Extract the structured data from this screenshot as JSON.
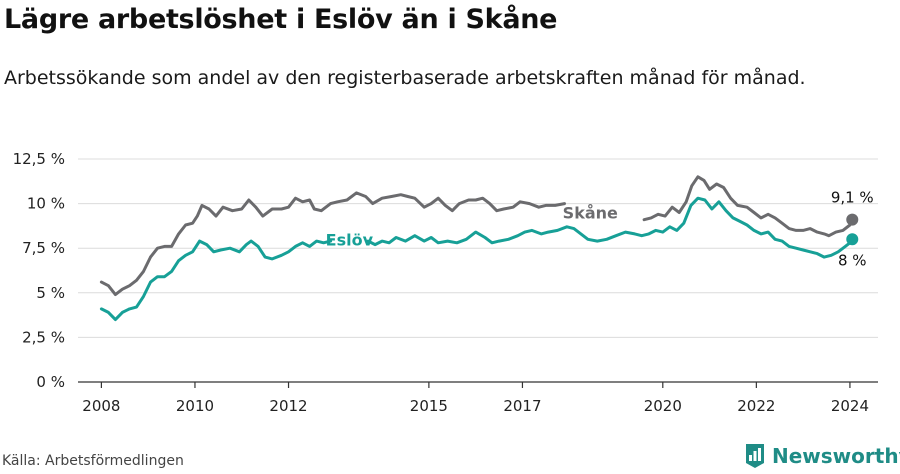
{
  "header": {
    "title": "Lägre arbetslöshet i Eslöv än i Skåne",
    "subtitle": "Arbetssökande som andel av den registerbaserade arbetskraften månad för månad."
  },
  "footer": {
    "source": "Källa: Arbetsförmedlingen",
    "brand": "Newsworthy",
    "brand_color": "#1f8c86"
  },
  "chart_data": {
    "type": "line",
    "title": "Lägre arbetslöshet i Eslöv än i Skåne",
    "xlabel": "",
    "ylabel": "",
    "xlim": [
      2007.5,
      2024.6
    ],
    "ylim": [
      0,
      12.5
    ],
    "grid": true,
    "y_ticks": [
      {
        "value": 0,
        "label": "0 %"
      },
      {
        "value": 2.5,
        "label": "2,5 %"
      },
      {
        "value": 5,
        "label": "5 %"
      },
      {
        "value": 7.5,
        "label": "7,5 %"
      },
      {
        "value": 10,
        "label": "10 %"
      },
      {
        "value": 12.5,
        "label": "12,5 %"
      }
    ],
    "x_ticks": [
      {
        "value": 2008,
        "label": "2008"
      },
      {
        "value": 2010,
        "label": "2010"
      },
      {
        "value": 2012,
        "label": "2012"
      },
      {
        "value": 2015,
        "label": "2015"
      },
      {
        "value": 2017,
        "label": "2017"
      },
      {
        "value": 2020,
        "label": "2020"
      },
      {
        "value": 2022,
        "label": "2022"
      },
      {
        "value": 2024,
        "label": "2024"
      }
    ],
    "series": [
      {
        "name": "Skåne",
        "color": "#6b6b6e",
        "end_label": "9,1 %",
        "points": [
          [
            2008.0,
            5.6
          ],
          [
            2008.15,
            5.4
          ],
          [
            2008.3,
            4.9
          ],
          [
            2008.45,
            5.2
          ],
          [
            2008.6,
            5.4
          ],
          [
            2008.75,
            5.7
          ],
          [
            2008.9,
            6.2
          ],
          [
            2009.05,
            7.0
          ],
          [
            2009.2,
            7.5
          ],
          [
            2009.35,
            7.6
          ],
          [
            2009.5,
            7.6
          ],
          [
            2009.65,
            8.3
          ],
          [
            2009.8,
            8.8
          ],
          [
            2009.95,
            8.9
          ],
          [
            2010.05,
            9.3
          ],
          [
            2010.15,
            9.9
          ],
          [
            2010.3,
            9.7
          ],
          [
            2010.45,
            9.3
          ],
          [
            2010.6,
            9.8
          ],
          [
            2010.8,
            9.6
          ],
          [
            2011.0,
            9.7
          ],
          [
            2011.15,
            10.2
          ],
          [
            2011.3,
            9.8
          ],
          [
            2011.45,
            9.3
          ],
          [
            2011.65,
            9.7
          ],
          [
            2011.85,
            9.7
          ],
          [
            2012.0,
            9.8
          ],
          [
            2012.15,
            10.3
          ],
          [
            2012.3,
            10.1
          ],
          [
            2012.45,
            10.2
          ],
          [
            2012.55,
            9.7
          ],
          [
            2012.7,
            9.6
          ],
          [
            2012.9,
            10.0
          ],
          [
            2013.05,
            10.1
          ],
          [
            2013.25,
            10.2
          ],
          [
            2013.45,
            10.6
          ],
          [
            2013.65,
            10.4
          ],
          [
            2013.8,
            10.0
          ],
          [
            2014.0,
            10.3
          ],
          [
            2014.2,
            10.4
          ],
          [
            2014.4,
            10.5
          ],
          [
            2014.55,
            10.4
          ],
          [
            2014.7,
            10.3
          ],
          [
            2014.9,
            9.8
          ],
          [
            2015.05,
            10.0
          ],
          [
            2015.2,
            10.3
          ],
          [
            2015.35,
            9.9
          ],
          [
            2015.5,
            9.6
          ],
          [
            2015.65,
            10.0
          ],
          [
            2015.85,
            10.2
          ],
          [
            2016.0,
            10.2
          ],
          [
            2016.15,
            10.3
          ],
          [
            2016.3,
            10.0
          ],
          [
            2016.45,
            9.6
          ],
          [
            2016.6,
            9.7
          ],
          [
            2016.8,
            9.8
          ],
          [
            2016.95,
            10.1
          ],
          [
            2017.15,
            10.0
          ],
          [
            2017.35,
            9.8
          ],
          [
            2017.5,
            9.9
          ],
          [
            2017.7,
            9.9
          ],
          [
            2017.9,
            10.0
          ]
        ],
        "points_after_label": [
          [
            2019.6,
            9.1
          ],
          [
            2019.75,
            9.2
          ],
          [
            2019.9,
            9.4
          ],
          [
            2020.05,
            9.3
          ],
          [
            2020.2,
            9.8
          ],
          [
            2020.35,
            9.5
          ],
          [
            2020.5,
            10.1
          ],
          [
            2020.62,
            11.0
          ],
          [
            2020.75,
            11.5
          ],
          [
            2020.88,
            11.3
          ],
          [
            2021.0,
            10.8
          ],
          [
            2021.15,
            11.1
          ],
          [
            2021.3,
            10.9
          ],
          [
            2021.45,
            10.3
          ],
          [
            2021.6,
            9.9
          ],
          [
            2021.8,
            9.8
          ],
          [
            2021.95,
            9.5
          ],
          [
            2022.1,
            9.2
          ],
          [
            2022.25,
            9.4
          ],
          [
            2022.4,
            9.2
          ],
          [
            2022.55,
            8.9
          ],
          [
            2022.7,
            8.6
          ],
          [
            2022.85,
            8.5
          ],
          [
            2023.0,
            8.5
          ],
          [
            2023.15,
            8.6
          ],
          [
            2023.3,
            8.4
          ],
          [
            2023.45,
            8.3
          ],
          [
            2023.55,
            8.2
          ],
          [
            2023.7,
            8.4
          ],
          [
            2023.85,
            8.5
          ],
          [
            2024.0,
            8.8
          ],
          [
            2024.05,
            9.1
          ]
        ]
      },
      {
        "name": "Eslöv",
        "color": "#17a097",
        "end_label": "8 %",
        "points": [
          [
            2008.0,
            4.1
          ],
          [
            2008.15,
            3.9
          ],
          [
            2008.3,
            3.5
          ],
          [
            2008.45,
            3.9
          ],
          [
            2008.6,
            4.1
          ],
          [
            2008.75,
            4.2
          ],
          [
            2008.9,
            4.8
          ],
          [
            2009.05,
            5.6
          ],
          [
            2009.2,
            5.9
          ],
          [
            2009.35,
            5.9
          ],
          [
            2009.5,
            6.2
          ],
          [
            2009.65,
            6.8
          ],
          [
            2009.8,
            7.1
          ],
          [
            2009.95,
            7.3
          ],
          [
            2010.1,
            7.9
          ],
          [
            2010.25,
            7.7
          ],
          [
            2010.4,
            7.3
          ],
          [
            2010.55,
            7.4
          ],
          [
            2010.75,
            7.5
          ],
          [
            2010.95,
            7.3
          ],
          [
            2011.1,
            7.7
          ],
          [
            2011.2,
            7.9
          ],
          [
            2011.35,
            7.6
          ],
          [
            2011.5,
            7.0
          ],
          [
            2011.65,
            6.9
          ],
          [
            2011.85,
            7.1
          ],
          [
            2012.0,
            7.3
          ],
          [
            2012.15,
            7.6
          ],
          [
            2012.3,
            7.8
          ],
          [
            2012.45,
            7.6
          ],
          [
            2012.6,
            7.9
          ],
          [
            2012.75,
            7.8
          ],
          [
            2012.9,
            7.9
          ]
        ],
        "points_after_label": [
          [
            2013.7,
            7.9
          ],
          [
            2013.85,
            7.7
          ],
          [
            2014.0,
            7.9
          ],
          [
            2014.15,
            7.8
          ],
          [
            2014.3,
            8.1
          ],
          [
            2014.5,
            7.9
          ],
          [
            2014.7,
            8.2
          ],
          [
            2014.9,
            7.9
          ],
          [
            2015.05,
            8.1
          ],
          [
            2015.2,
            7.8
          ],
          [
            2015.4,
            7.9
          ],
          [
            2015.6,
            7.8
          ],
          [
            2015.8,
            8.0
          ],
          [
            2016.0,
            8.4
          ],
          [
            2016.2,
            8.1
          ],
          [
            2016.35,
            7.8
          ],
          [
            2016.5,
            7.9
          ],
          [
            2016.7,
            8.0
          ],
          [
            2016.9,
            8.2
          ],
          [
            2017.05,
            8.4
          ],
          [
            2017.2,
            8.5
          ],
          [
            2017.4,
            8.3
          ],
          [
            2017.55,
            8.4
          ],
          [
            2017.75,
            8.5
          ],
          [
            2017.95,
            8.7
          ],
          [
            2018.1,
            8.6
          ],
          [
            2018.25,
            8.3
          ],
          [
            2018.4,
            8.0
          ],
          [
            2018.6,
            7.9
          ],
          [
            2018.8,
            8.0
          ],
          [
            2019.0,
            8.2
          ],
          [
            2019.2,
            8.4
          ],
          [
            2019.4,
            8.3
          ],
          [
            2019.55,
            8.2
          ],
          [
            2019.7,
            8.3
          ],
          [
            2019.85,
            8.5
          ],
          [
            2020.0,
            8.4
          ],
          [
            2020.15,
            8.7
          ],
          [
            2020.3,
            8.5
          ],
          [
            2020.45,
            8.9
          ],
          [
            2020.6,
            9.9
          ],
          [
            2020.75,
            10.3
          ],
          [
            2020.9,
            10.2
          ],
          [
            2021.05,
            9.7
          ],
          [
            2021.2,
            10.1
          ],
          [
            2021.35,
            9.6
          ],
          [
            2021.5,
            9.2
          ],
          [
            2021.65,
            9.0
          ],
          [
            2021.8,
            8.8
          ],
          [
            2021.95,
            8.5
          ],
          [
            2022.1,
            8.3
          ],
          [
            2022.25,
            8.4
          ],
          [
            2022.4,
            8.0
          ],
          [
            2022.55,
            7.9
          ],
          [
            2022.7,
            7.6
          ],
          [
            2022.85,
            7.5
          ],
          [
            2023.0,
            7.4
          ],
          [
            2023.15,
            7.3
          ],
          [
            2023.3,
            7.2
          ],
          [
            2023.45,
            7.0
          ],
          [
            2023.6,
            7.1
          ],
          [
            2023.75,
            7.3
          ],
          [
            2023.9,
            7.6
          ],
          [
            2024.0,
            7.8
          ],
          [
            2024.05,
            8.0
          ]
        ]
      }
    ]
  }
}
